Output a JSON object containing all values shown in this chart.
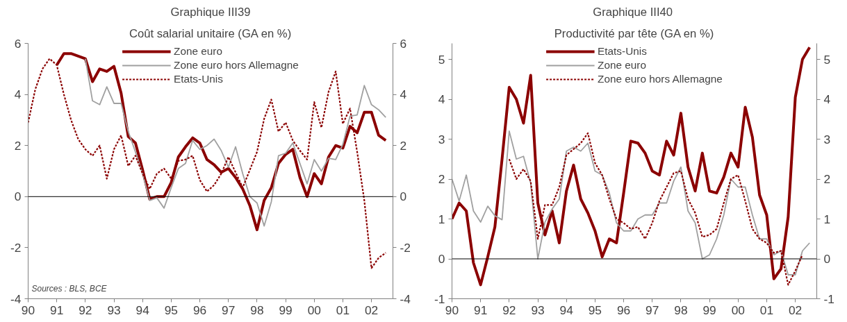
{
  "chart_data": [
    {
      "type": "line",
      "title": "Graphique III39",
      "subtitle": "Coût salarial unitaire (GA en %)",
      "xlim": [
        1990,
        2002.75
      ],
      "xticks": [
        {
          "value": 1990,
          "label": "90"
        },
        {
          "value": 1991,
          "label": "91"
        },
        {
          "value": 1992,
          "label": "92"
        },
        {
          "value": 1993,
          "label": "93"
        },
        {
          "value": 1994,
          "label": "94"
        },
        {
          "value": 1995,
          "label": "95"
        },
        {
          "value": 1996,
          "label": "96"
        },
        {
          "value": 1997,
          "label": "97"
        },
        {
          "value": 1998,
          "label": "98"
        },
        {
          "value": 1999,
          "label": "99"
        },
        {
          "value": 2000,
          "label": "00"
        },
        {
          "value": 2001,
          "label": "01"
        },
        {
          "value": 2002,
          "label": "02"
        }
      ],
      "ylim": [
        -4,
        6
      ],
      "yticks": [
        -4,
        -2,
        0,
        2,
        4,
        6
      ],
      "y2lim": [
        -4,
        6
      ],
      "y2ticks": [
        -4,
        -2,
        0,
        2,
        4,
        6
      ],
      "grid": false,
      "legend": "top",
      "ref_lines": [
        {
          "axis": "y",
          "value": 0,
          "color": "#000000"
        }
      ],
      "annotations": [
        "Sources : BLS, BCE"
      ],
      "series": [
        {
          "name": "Zone euro",
          "color": "#8b0000",
          "line_style": "solid",
          "x": [
            1991,
            1991.25,
            1991.5,
            1991.75,
            1992,
            1992.25,
            1992.5,
            1992.75,
            1993,
            1993.25,
            1993.5,
            1993.75,
            1994,
            1994.25,
            1994.5,
            1994.75,
            1995,
            1995.25,
            1995.5,
            1995.75,
            1996,
            1996.25,
            1996.5,
            1996.75,
            1997,
            1997.25,
            1997.5,
            1997.75,
            1998,
            1998.25,
            1998.5,
            1998.75,
            1999,
            1999.25,
            1999.5,
            1999.75,
            2000,
            2000.25,
            2000.5,
            2000.75,
            2001,
            2001.25,
            2001.5,
            2001.75,
            2002,
            2002.25,
            2002.5
          ],
          "values": [
            5.15,
            5.6,
            5.6,
            5.5,
            5.4,
            4.5,
            5.0,
            4.9,
            5.1,
            4.05,
            2.35,
            2.1,
            1.05,
            -0.1,
            0.0,
            0.0,
            0.55,
            1.55,
            1.95,
            2.3,
            2.1,
            1.45,
            1.25,
            0.95,
            1.1,
            0.75,
            0.3,
            -0.35,
            -1.3,
            -0.15,
            0.35,
            1.3,
            1.65,
            1.85,
            0.75,
            0.0,
            0.9,
            0.5,
            1.55,
            2.0,
            1.9,
            2.75,
            2.5,
            3.3,
            3.3,
            2.4,
            2.2
          ]
        },
        {
          "name": "Zone euro hors Allemagne",
          "color": "#a0a0a0",
          "line_style": "solid",
          "x": [
            1992,
            1992.25,
            1992.5,
            1992.75,
            1993,
            1993.25,
            1993.5,
            1993.75,
            1994,
            1994.25,
            1994.5,
            1994.75,
            1995,
            1995.25,
            1995.5,
            1995.75,
            1996,
            1996.25,
            1996.5,
            1996.75,
            1997,
            1997.25,
            1997.5,
            1997.75,
            1998,
            1998.25,
            1998.5,
            1998.75,
            1999,
            1999.25,
            1999.5,
            1999.75,
            2000,
            2000.25,
            2000.5,
            2000.75,
            2001,
            2001.25,
            2001.5,
            2001.75,
            2002,
            2002.25,
            2002.5
          ],
          "values": [
            5.4,
            3.75,
            3.6,
            4.3,
            3.65,
            3.65,
            2.55,
            1.75,
            0.9,
            -0.15,
            -0.05,
            -0.45,
            0.35,
            1.1,
            1.3,
            2.2,
            1.85,
            2.0,
            2.25,
            1.8,
            1.15,
            1.95,
            0.9,
            0.0,
            -0.25,
            -1.15,
            -0.2,
            1.6,
            1.7,
            2.1,
            1.3,
            0.5,
            1.45,
            1.0,
            1.5,
            1.45,
            2.05,
            3.15,
            3.2,
            4.35,
            3.6,
            3.4,
            3.1
          ]
        },
        {
          "name": "Etats-Unis",
          "color": "#8b0000",
          "line_style": "dotted",
          "x": [
            1990,
            1990.25,
            1990.5,
            1990.75,
            1991,
            1991.25,
            1991.5,
            1991.75,
            1992,
            1992.25,
            1992.5,
            1992.75,
            1993,
            1993.25,
            1993.5,
            1993.75,
            1994,
            1994.25,
            1994.5,
            1994.75,
            1995,
            1995.25,
            1995.5,
            1995.75,
            1996,
            1996.25,
            1996.5,
            1996.75,
            1997,
            1997.25,
            1997.5,
            1997.75,
            1998,
            1998.25,
            1998.5,
            1998.75,
            1999,
            1999.25,
            1999.5,
            1999.75,
            2000,
            2000.25,
            2000.5,
            2000.75,
            2001,
            2001.25,
            2001.5,
            2001.75,
            2002,
            2002.25,
            2002.5
          ],
          "values": [
            2.9,
            4.2,
            5.0,
            5.4,
            5.15,
            4.0,
            3.0,
            2.25,
            1.85,
            1.6,
            2.0,
            0.7,
            1.85,
            2.4,
            1.2,
            1.6,
            0.9,
            0.3,
            0.9,
            1.1,
            0.7,
            1.4,
            1.45,
            1.6,
            0.65,
            0.2,
            0.45,
            0.9,
            1.55,
            0.95,
            0.35,
            1.05,
            1.75,
            3.05,
            3.8,
            2.55,
            2.9,
            2.2,
            1.8,
            1.45,
            3.7,
            2.7,
            4.1,
            4.9,
            2.85,
            3.45,
            1.75,
            -0.15,
            -2.8,
            -2.4,
            -2.2
          ]
        }
      ]
    },
    {
      "type": "line",
      "title": "Graphique  III40",
      "subtitle": "Productivité par tête (GA en %)",
      "xlim": [
        1990,
        2002.75
      ],
      "xticks": [
        {
          "value": 1990,
          "label": "90"
        },
        {
          "value": 1991,
          "label": "91"
        },
        {
          "value": 1992,
          "label": "92"
        },
        {
          "value": 1993,
          "label": "93"
        },
        {
          "value": 1994,
          "label": "94"
        },
        {
          "value": 1995,
          "label": "95"
        },
        {
          "value": 1996,
          "label": "96"
        },
        {
          "value": 1997,
          "label": "97"
        },
        {
          "value": 1998,
          "label": "98"
        },
        {
          "value": 1999,
          "label": "99"
        },
        {
          "value": 2000,
          "label": "00"
        },
        {
          "value": 2001,
          "label": "01"
        },
        {
          "value": 2002,
          "label": "02"
        }
      ],
      "ylim": [
        -1,
        5.4
      ],
      "yticks": [
        -1,
        0,
        1,
        2,
        3,
        4,
        5
      ],
      "y2lim": [
        -1,
        5.4
      ],
      "y2ticks": [
        -1,
        0,
        1,
        2,
        3,
        4,
        5
      ],
      "grid": false,
      "legend": "top",
      "ref_lines": [
        {
          "axis": "y",
          "value": 0,
          "color": "#000000"
        }
      ],
      "series": [
        {
          "name": "Etats-Unis",
          "color": "#8b0000",
          "line_style": "solid",
          "x": [
            1990,
            1990.25,
            1990.5,
            1990.75,
            1991,
            1991.25,
            1991.5,
            1991.75,
            1992,
            1992.25,
            1992.5,
            1992.75,
            1993,
            1993.25,
            1993.5,
            1993.75,
            1994,
            1994.25,
            1994.5,
            1994.75,
            1995,
            1995.25,
            1995.5,
            1995.75,
            1996,
            1996.25,
            1996.5,
            1996.75,
            1997,
            1997.25,
            1997.5,
            1997.75,
            1998,
            1998.25,
            1998.5,
            1998.75,
            1999,
            1999.25,
            1999.5,
            1999.75,
            2000,
            2000.25,
            2000.5,
            2000.75,
            2001,
            2001.25,
            2001.5,
            2001.75,
            2002,
            2002.25,
            2002.5
          ],
          "values": [
            1.0,
            1.4,
            1.2,
            -0.1,
            -0.65,
            0.05,
            0.8,
            2.5,
            4.3,
            4.0,
            3.4,
            4.6,
            1.4,
            0.6,
            1.2,
            0.4,
            1.7,
            2.35,
            1.5,
            1.15,
            0.7,
            0.05,
            0.5,
            0.4,
            1.65,
            2.95,
            2.9,
            2.65,
            2.2,
            2.1,
            2.95,
            2.6,
            3.65,
            2.3,
            1.7,
            2.65,
            1.7,
            1.65,
            2.05,
            2.65,
            2.3,
            3.8,
            3.05,
            1.6,
            1.1,
            -0.5,
            -0.25,
            1.05,
            4.05,
            5.0,
            5.3
          ]
        },
        {
          "name": "Zone euro",
          "color": "#a0a0a0",
          "line_style": "solid",
          "x": [
            1990,
            1990.25,
            1990.5,
            1990.75,
            1991,
            1991.25,
            1991.5,
            1991.75,
            1992,
            1992.25,
            1992.5,
            1992.75,
            1993,
            1993.25,
            1993.5,
            1993.75,
            1994,
            1994.25,
            1994.5,
            1994.75,
            1995,
            1995.25,
            1995.5,
            1995.75,
            1996,
            1996.25,
            1996.5,
            1996.75,
            1997,
            1997.25,
            1997.5,
            1997.75,
            1998,
            1998.25,
            1998.5,
            1998.75,
            1999,
            1999.25,
            1999.5,
            1999.75,
            2000,
            2000.25,
            2000.5,
            2000.75,
            2001,
            2001.25,
            2001.5,
            2001.75,
            2002,
            2002.25,
            2002.5
          ],
          "values": [
            2.0,
            1.45,
            2.1,
            1.2,
            0.92,
            1.32,
            1.08,
            0.98,
            3.2,
            2.5,
            2.57,
            1.9,
            0.0,
            0.92,
            1.25,
            1.5,
            2.7,
            2.8,
            2.7,
            2.9,
            2.2,
            2.1,
            1.65,
            0.9,
            0.7,
            0.7,
            1.0,
            1.1,
            1.1,
            1.4,
            1.4,
            1.95,
            2.3,
            1.2,
            0.9,
            0.0,
            0.1,
            0.5,
            1.1,
            2.0,
            1.8,
            1.8,
            1.1,
            0.5,
            0.5,
            0.1,
            0.2,
            -0.4,
            -0.4,
            0.2,
            0.4
          ]
        },
        {
          "name": "Zone euro hors Allemagne",
          "color": "#8b0000",
          "line_style": "dotted",
          "x": [
            1992,
            1992.25,
            1992.5,
            1992.75,
            1993,
            1993.25,
            1993.5,
            1993.75,
            1994,
            1994.25,
            1994.5,
            1994.75,
            1995,
            1995.25,
            1995.5,
            1995.75,
            1996,
            1996.25,
            1996.5,
            1996.75,
            1997,
            1997.25,
            1997.5,
            1997.75,
            1998,
            1998.25,
            1998.5,
            1998.75,
            1999,
            1999.25,
            1999.5,
            1999.75,
            2000,
            2000.25,
            2000.5,
            2000.75,
            2001,
            2001.25,
            2001.5,
            2001.75,
            2002,
            2002.25
          ],
          "values": [
            2.5,
            2.0,
            2.25,
            1.95,
            0.5,
            1.35,
            1.35,
            1.8,
            2.6,
            2.75,
            2.9,
            3.15,
            2.4,
            2.1,
            1.5,
            1.0,
            0.9,
            0.75,
            0.8,
            0.5,
            0.9,
            1.45,
            1.8,
            2.15,
            2.2,
            1.5,
            1.15,
            0.55,
            0.6,
            0.75,
            1.4,
            2.0,
            2.1,
            1.45,
            0.75,
            0.5,
            0.4,
            0.15,
            0.2,
            -0.65,
            -0.3,
            0.1
          ]
        }
      ]
    }
  ]
}
